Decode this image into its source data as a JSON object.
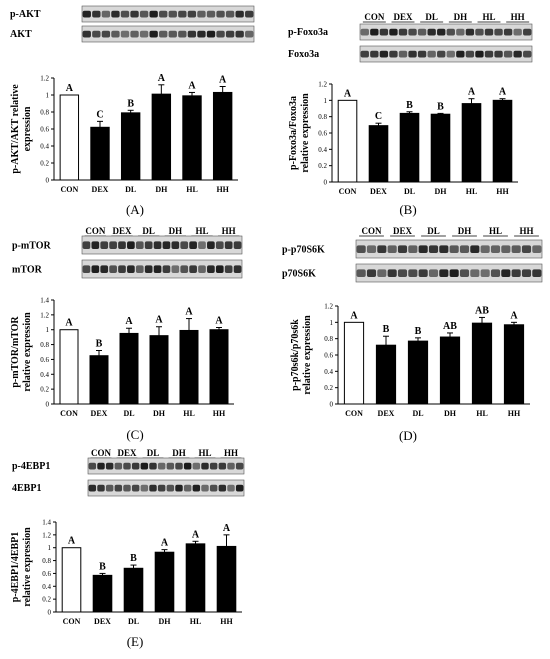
{
  "groups": [
    "CON",
    "DEX",
    "DL",
    "DH",
    "HL",
    "HH"
  ],
  "colors": {
    "control_bar": "#ffffff",
    "treatment_bar": "#000000",
    "axis": "#000000",
    "blot_bg": "#d8d8d8",
    "band": "#1a1a1a"
  },
  "chart_data": [
    {
      "type": "bar",
      "panel": "(A)",
      "blots": [
        "p-AKT",
        "AKT"
      ],
      "categories": [
        "CON",
        "DEX",
        "DL",
        "DH",
        "HL",
        "HH"
      ],
      "values": [
        1.0,
        0.62,
        0.79,
        1.01,
        0.99,
        1.03
      ],
      "errors": [
        0,
        0.07,
        0.03,
        0.11,
        0.04,
        0.07
      ],
      "letters": [
        "A",
        "C",
        "B",
        "A",
        "A",
        "A"
      ],
      "ylabel": [
        "p-AKT/AKT relative",
        "expression"
      ],
      "ylim": [
        0,
        1.2
      ],
      "yticks": [
        "0",
        "0.2",
        "0.4",
        "0.6",
        "0.8",
        "1",
        "1.2"
      ],
      "legend": "none"
    },
    {
      "type": "bar",
      "panel": "(B)",
      "blots": [
        "p-Foxo3a",
        "Foxo3a"
      ],
      "categories": [
        "CON",
        "DEX",
        "DL",
        "DH",
        "HL",
        "HH"
      ],
      "values": [
        1.0,
        0.69,
        0.84,
        0.83,
        0.96,
        1.0
      ],
      "errors": [
        0,
        0.03,
        0.02,
        0.01,
        0.06,
        0.02
      ],
      "letters": [
        "A",
        "C",
        "B",
        "B",
        "A",
        "A"
      ],
      "ylabel": [
        "p-Foxo3a/Foxo3a",
        "relative expression"
      ],
      "ylim": [
        0,
        1.2
      ],
      "yticks": [
        "0",
        "0.2",
        "0.4",
        "0.6",
        "0.8",
        "1",
        "1.2"
      ],
      "legend": "none"
    },
    {
      "type": "bar",
      "panel": "(C)",
      "blots": [
        "p-mTOR",
        "mTOR"
      ],
      "categories": [
        "CON",
        "DEX",
        "DL",
        "DH",
        "HL",
        "HH"
      ],
      "values": [
        1.0,
        0.65,
        0.95,
        0.92,
        0.99,
        1.0
      ],
      "errors": [
        0,
        0.07,
        0.07,
        0.12,
        0.16,
        0.03
      ],
      "letters": [
        "A",
        "B",
        "A",
        "A",
        "A",
        "A"
      ],
      "ylabel": [
        "p-mTOR/mTOR",
        "relative expression"
      ],
      "ylim": [
        0,
        1.4
      ],
      "yticks": [
        "0",
        "0.2",
        "0.4",
        "0.6",
        "0.8",
        "1",
        "1.2",
        "1.4"
      ],
      "legend": "none"
    },
    {
      "type": "bar",
      "panel": "(D)",
      "blots": [
        "p-p70S6K",
        "p70S6K"
      ],
      "categories": [
        "CON",
        "DEX",
        "DL",
        "DH",
        "HL",
        "HH"
      ],
      "values": [
        1.0,
        0.72,
        0.77,
        0.82,
        0.99,
        0.97
      ],
      "errors": [
        0,
        0.11,
        0.04,
        0.05,
        0.07,
        0.03
      ],
      "letters": [
        "A",
        "B",
        "B",
        "AB",
        "AB",
        "A"
      ],
      "ylabel": [
        "p-p70s6k/p70s6k",
        "relative expression"
      ],
      "ylim": [
        0,
        1.2
      ],
      "yticks": [
        "0",
        "0.2",
        "0.4",
        "0.6",
        "0.8",
        "1",
        "1.2"
      ],
      "legend": "none"
    },
    {
      "type": "bar",
      "panel": "(E)",
      "blots": [
        "p-4EBP1",
        "4EBP1"
      ],
      "categories": [
        "CON",
        "DEX",
        "DL",
        "DH",
        "HL",
        "HH"
      ],
      "values": [
        1.0,
        0.57,
        0.68,
        0.93,
        1.06,
        1.02
      ],
      "errors": [
        0,
        0.03,
        0.05,
        0.04,
        0.04,
        0.18
      ],
      "letters": [
        "A",
        "B",
        "B",
        "A",
        "A",
        "A"
      ],
      "ylabel": [
        "p-4EBP1/4EBP1",
        "relative expression"
      ],
      "ylim": [
        0,
        1.4
      ],
      "yticks": [
        "0",
        "0.2",
        "0.4",
        "0.6",
        "0.8",
        "1",
        "1.2",
        "1.4"
      ],
      "legend": "none"
    }
  ]
}
